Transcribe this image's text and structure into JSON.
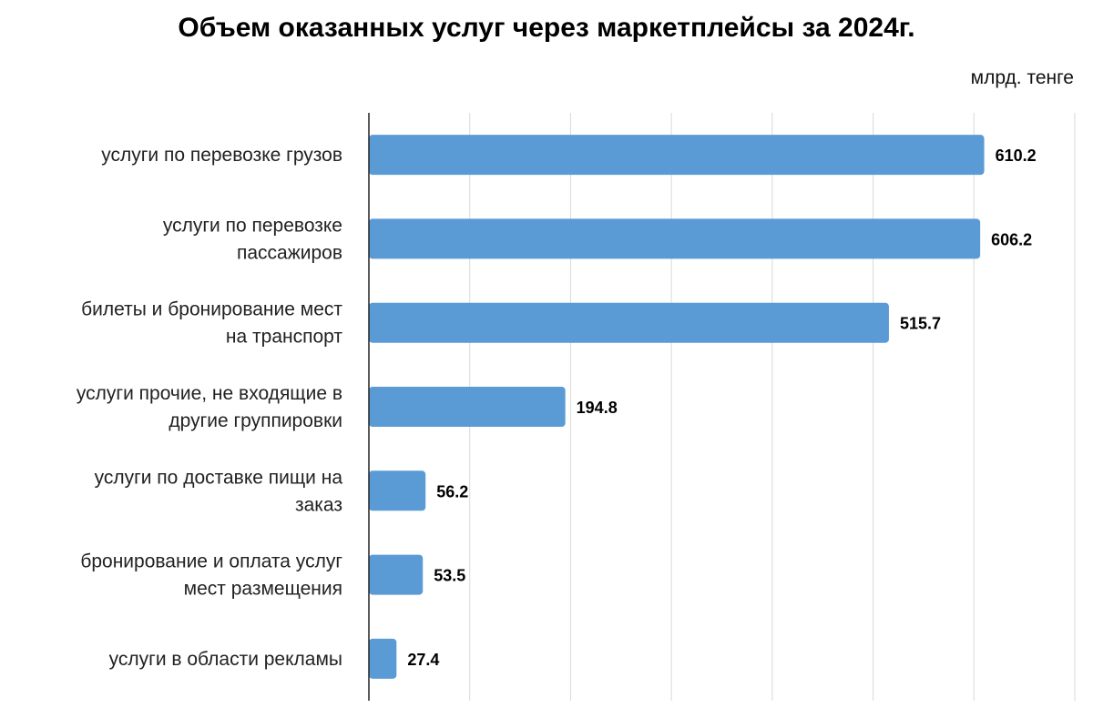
{
  "chart_data": {
    "type": "bar",
    "orientation": "horizontal",
    "title": "Объем оказанных услуг через маркетплейсы за 2024г.",
    "unit": "млрд. тенге",
    "categories": [
      [
        "услуги по перевозке грузов"
      ],
      [
        "услуги по перевозке",
        "пассажиров"
      ],
      [
        "билеты и бронирование мест",
        "на транспорт"
      ],
      [
        "услуги прочие, не входящие в",
        "другие группировки"
      ],
      [
        "услуги по доставке пищи на",
        "заказ"
      ],
      [
        "бронирование и оплата услуг",
        "мест размещения"
      ],
      [
        "услуги в области рекламы"
      ]
    ],
    "values": [
      610.2,
      606.2,
      515.7,
      194.8,
      56.2,
      53.5,
      27.4
    ],
    "value_labels": [
      "610.2",
      "606.2",
      "515.7",
      "194.8",
      "56.2",
      "53.5",
      "27.4"
    ],
    "xlim": [
      0,
      700
    ],
    "grid": true,
    "bar_color": "#5b9bd5"
  }
}
